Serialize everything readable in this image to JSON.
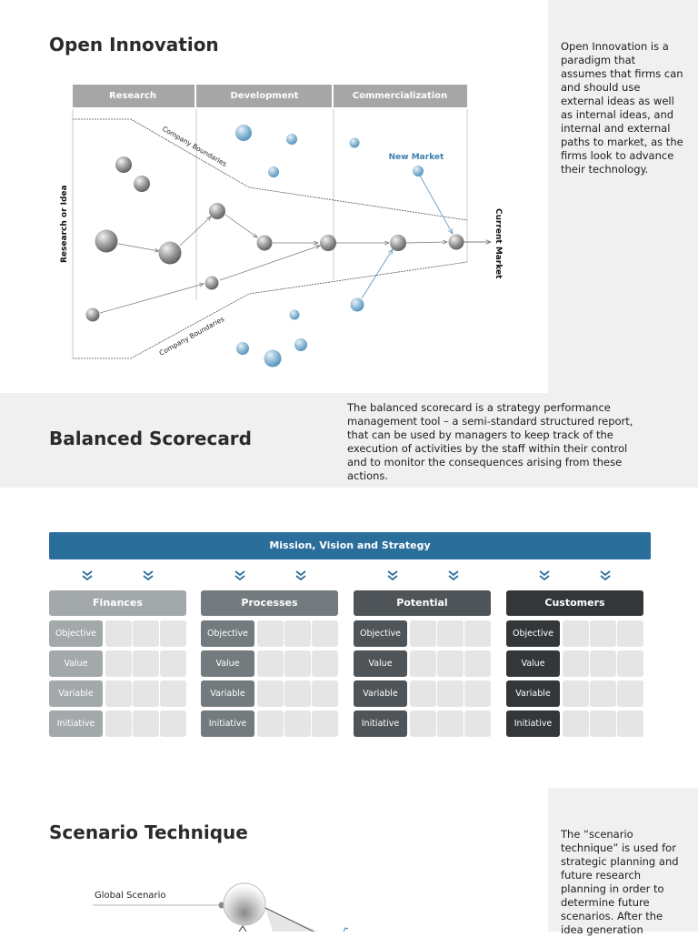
{
  "open_innovation": {
    "title": "Open Innovation",
    "description": "Open Innovation is a paradigm that assumes that firms can and should use external ideas as well as internal ideas, and internal and external paths to market, as the firms look to advance their technology.",
    "diagram": {
      "column_headers": [
        "Research",
        "Development",
        "Commercialization"
      ],
      "left_axis_label": "Research or Idea",
      "right_axis_label": "Current Market",
      "boundary_label_top": "Company Boundaries",
      "boundary_label_bottom": "Company Boundaries",
      "new_market_label": "New Market"
    }
  },
  "balanced_scorecard": {
    "title": "Balanced Scorecard",
    "description": "The balanced scorecard is a strategy performance management tool – a semi-standard structured report, that can be used by managers to keep track of the execution of activities by the staff within their control and to monitor the consequences arising from these actions.",
    "mission": "Mission, Vision and Strategy",
    "columns": [
      {
        "name": "Finances",
        "header_color": "#a3a8aa",
        "label_color": "#a3a8aa"
      },
      {
        "name": "Processes",
        "header_color": "#737b7e",
        "label_color": "#737b7e"
      },
      {
        "name": "Potential",
        "header_color": "#4e5457",
        "label_color": "#4e5457"
      },
      {
        "name": "Customers",
        "header_color": "#33373a",
        "label_color": "#33373a"
      }
    ],
    "row_labels": [
      "Objective",
      "Value",
      "Variable",
      "Initiative"
    ]
  },
  "scenario_technique": {
    "title": "Scenario Technique",
    "description": "The “scenario technique” is used for strategic planning and future research planning in order to determine future scenarios. After the idea generation",
    "global_scenario_label": "Global Scenario"
  }
}
